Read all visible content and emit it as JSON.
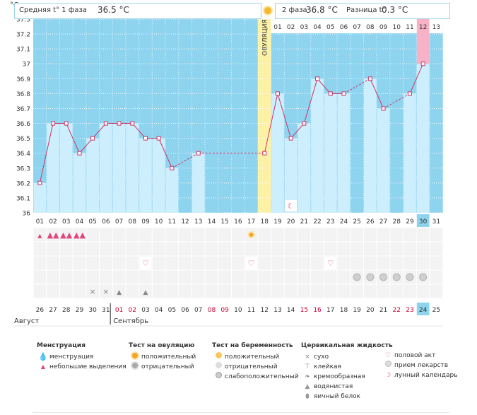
{
  "chart_data": {
    "type": "bar",
    "title": "",
    "ylabel": "°C",
    "ylim": [
      36,
      37.3
    ],
    "yticks": [
      "37.3",
      "37.2",
      "37.1",
      "37",
      "36.9",
      "36.8",
      "36.7",
      "36.6",
      "36.5",
      "36.4",
      "36.3",
      "36.2",
      "36.1",
      "36"
    ],
    "cycle_days": [
      "01",
      "02",
      "03",
      "04",
      "05",
      "06",
      "07",
      "08",
      "09",
      "10",
      "11",
      "12",
      "13",
      "14",
      "15",
      "16",
      "17",
      "18",
      "19",
      "20",
      "21",
      "22",
      "23",
      "24",
      "25",
      "26",
      "27",
      "28",
      "29",
      "30",
      "31"
    ],
    "temperatures": [
      36.2,
      36.6,
      36.6,
      36.4,
      36.5,
      36.6,
      36.6,
      36.6,
      36.5,
      36.5,
      36.3,
      null,
      36.4,
      null,
      null,
      null,
      null,
      36.4,
      36.8,
      36.5,
      36.6,
      36.9,
      36.8,
      36.8,
      null,
      36.9,
      36.7,
      null,
      36.8,
      37.0,
      null
    ],
    "ovulation_day": 18,
    "ovulation_label": "ОВУЛЯЦИЯ",
    "current_day": 30,
    "phase2_days": [
      "01",
      "02",
      "03",
      "04",
      "05",
      "06",
      "07",
      "08",
      "09",
      "10",
      "11",
      "12",
      "13"
    ],
    "phase2_current": 12,
    "date_days": [
      "26",
      "27",
      "28",
      "29",
      "30",
      "31",
      "01",
      "02",
      "03",
      "04",
      "05",
      "06",
      "07",
      "08",
      "09",
      "10",
      "11",
      "12",
      "13",
      "14",
      "15",
      "16",
      "17",
      "18",
      "19",
      "20",
      "21",
      "22",
      "23",
      "24",
      "25"
    ],
    "date_red": [
      6,
      7,
      13,
      14,
      20,
      21,
      27,
      28
    ],
    "months": [
      "Август",
      "Сентябрь"
    ],
    "marker_rows": {
      "menstruation": {
        "1": "small",
        "2": "heavy",
        "3": "heavy",
        "4": "heavy"
      },
      "ovulation_test": {
        "17": "positive"
      },
      "intercourse": [
        9,
        17,
        23
      ],
      "pregnancy_test": [
        25,
        26,
        27,
        28,
        29,
        30
      ],
      "cervical": {
        "5": "dry",
        "6": "dry",
        "7": "watery",
        "9": "watery"
      }
    },
    "moon_day": 20
  },
  "header": {
    "phase1_label": "Средняя t° 1 фаза",
    "phase1_value": "36.5 °C",
    "phase2_label": "2 фаза",
    "phase2_value": "36.8 °C",
    "diff_label": "Разница t°",
    "diff_value": "0.3 °C"
  },
  "legend": {
    "menstruation": {
      "title": "Менструация",
      "items": [
        "менструация",
        "небольшие выделения"
      ]
    },
    "ovulation_test": {
      "title": "Тест на овуляцию",
      "items": [
        "положительный",
        "отрицательный"
      ]
    },
    "pregnancy_test": {
      "title": "Тест на беременность",
      "items": [
        "положительный",
        "отрицательный",
        "слабоположительный"
      ]
    },
    "cervical": {
      "title": "Цервикальная жидкость",
      "items": [
        "сухо",
        "клейкая",
        "кремообразная",
        "водянистая",
        "яичный белок"
      ]
    },
    "other": {
      "items": [
        "половой акт",
        "прием лекарств",
        "лунный календарь"
      ]
    }
  },
  "colors": {
    "chart_bg": "#8fd4ef",
    "bar": "#cdeefc",
    "line": "#cc3366",
    "ovulation": "#fdf1a6",
    "current": "#f8b2c8",
    "header_border": "#9fd3ea"
  }
}
